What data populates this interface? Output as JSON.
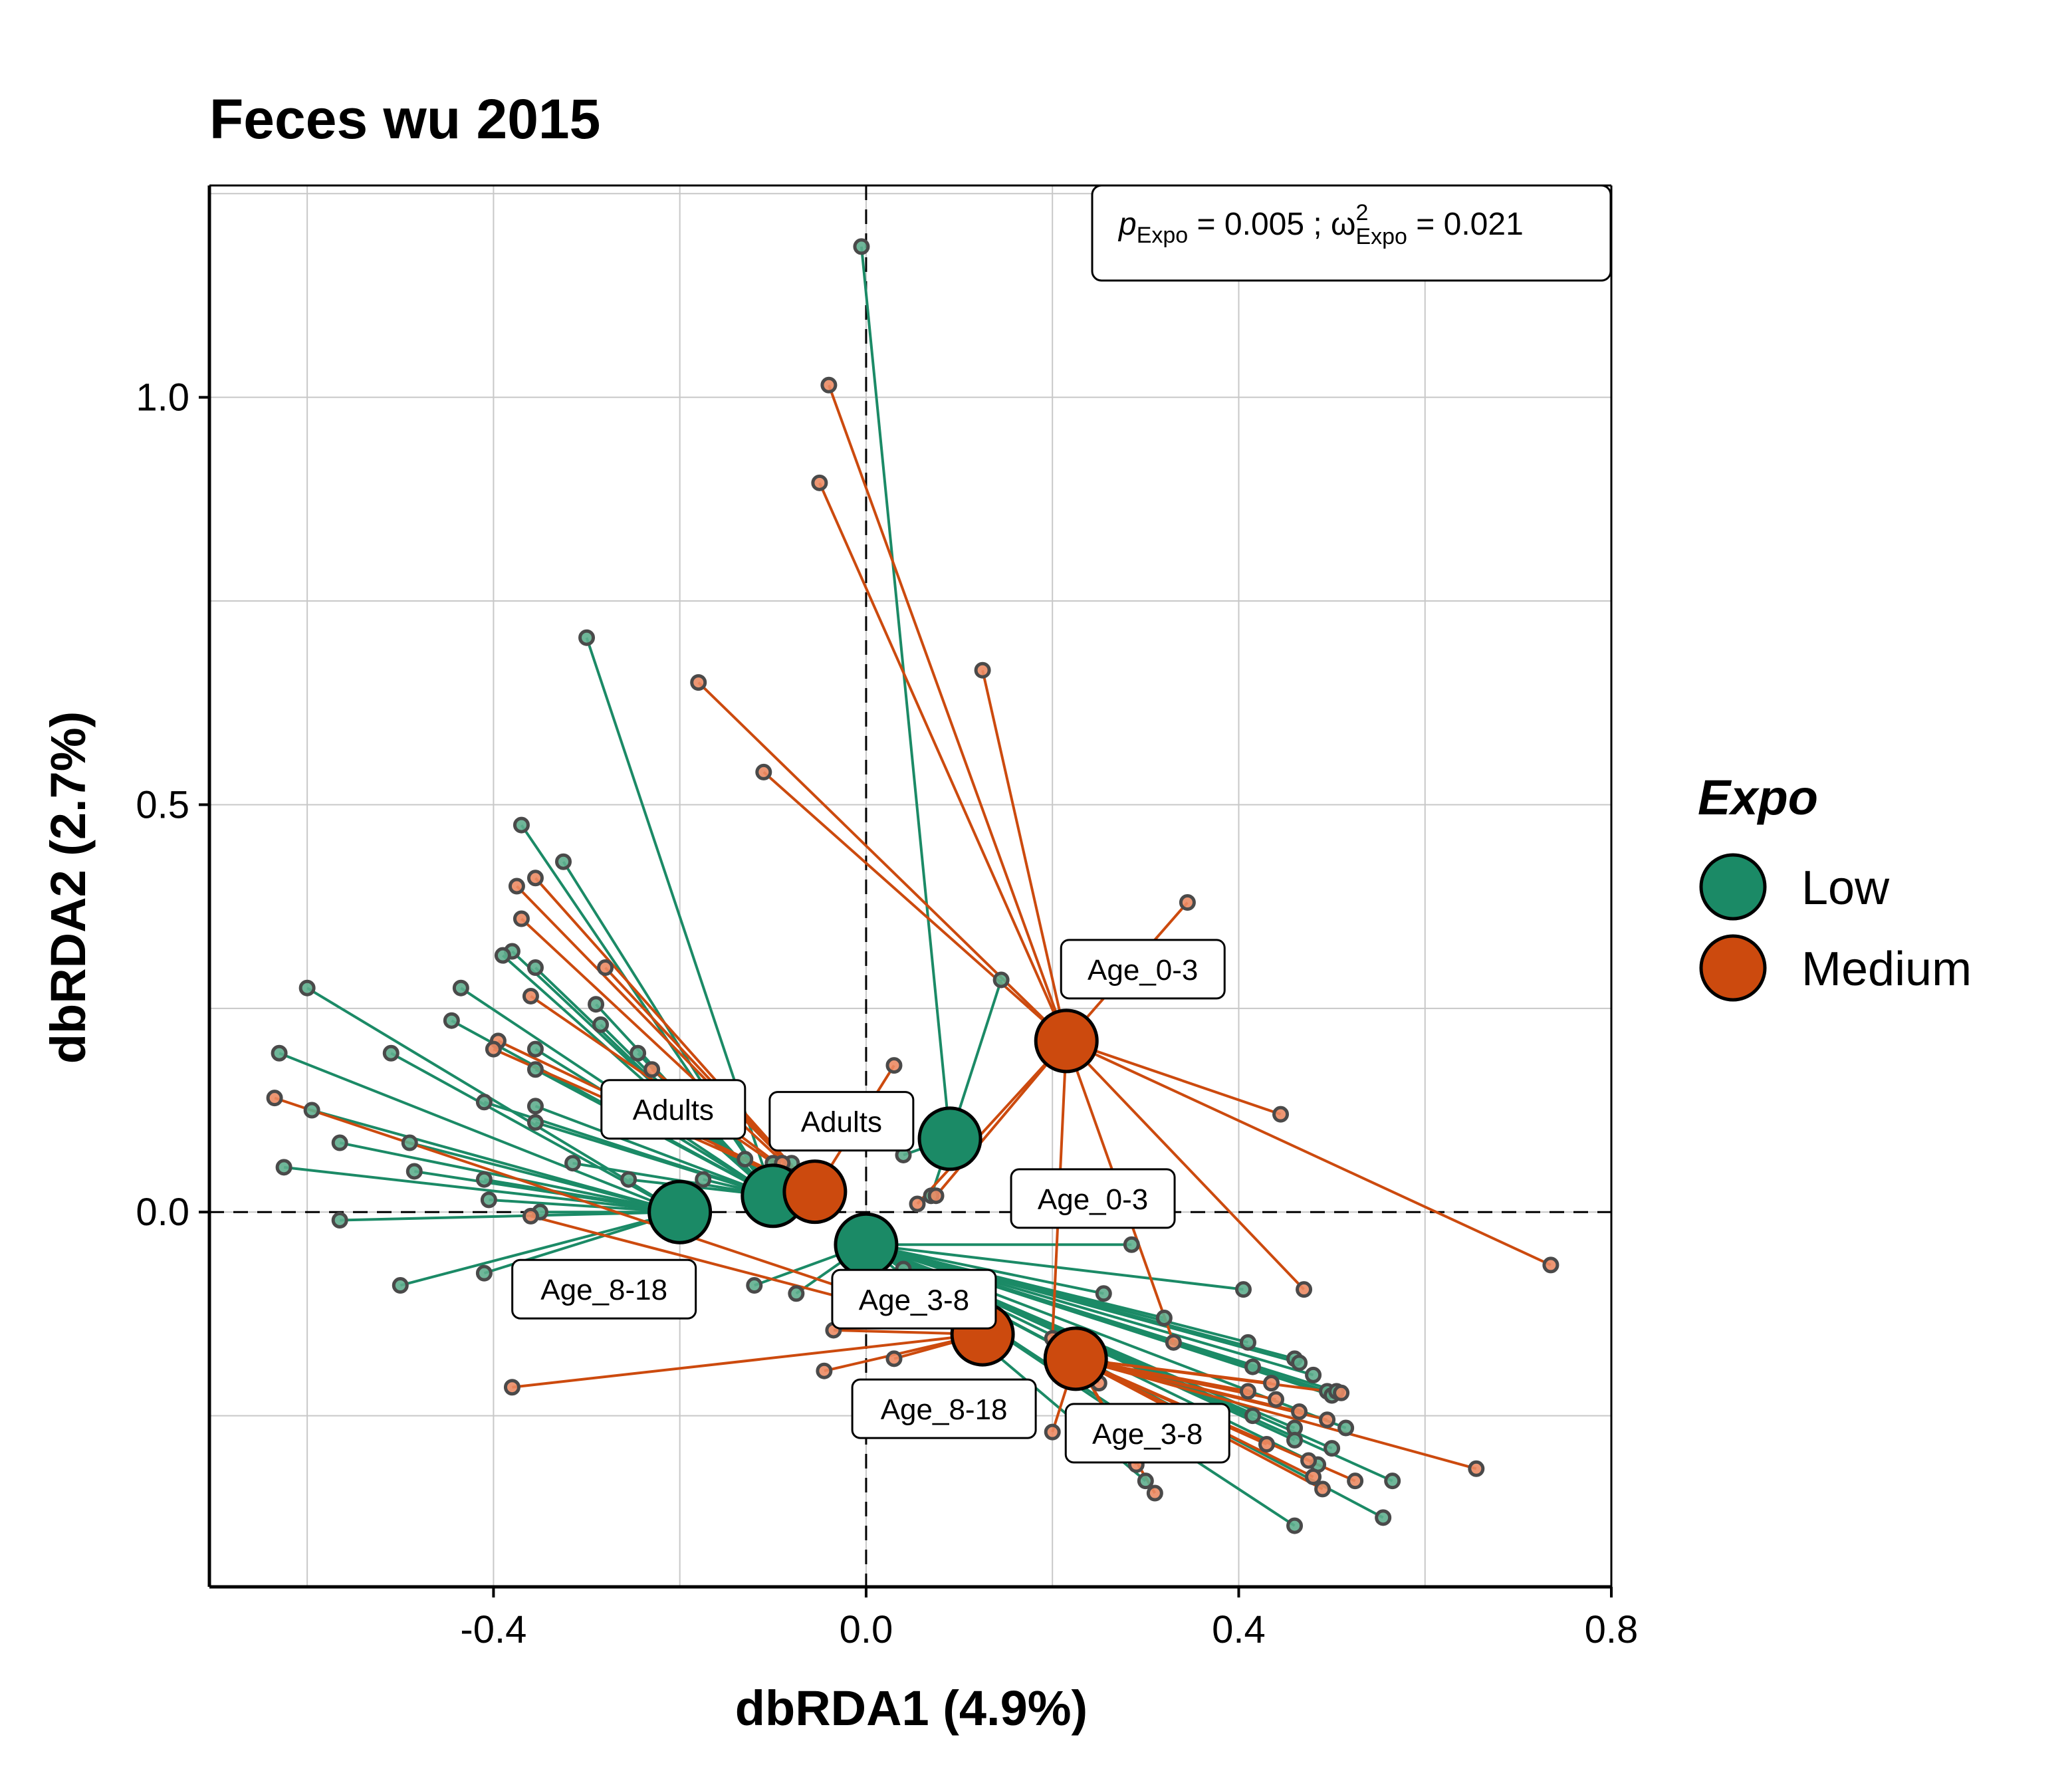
{
  "chart_data": {
    "type": "scatter",
    "title": "Feces wu 2015",
    "xlabel": "dbRDA1 (4.9%)",
    "ylabel": "dbRDA2 (2.7%)",
    "xlim": [
      -0.705,
      0.8
    ],
    "ylim": [
      -0.46,
      1.26
    ],
    "xticks": [
      "-0.4",
      "0.0",
      "0.4",
      "0.8"
    ],
    "yticks": [
      "0.0",
      "0.5",
      "1.0"
    ],
    "xtick_values": [
      -0.4,
      0.0,
      0.4,
      0.8
    ],
    "ytick_values": [
      0.0,
      0.5,
      1.0
    ],
    "grid": true,
    "reference_lines": {
      "x": 0,
      "y": 0,
      "style": "dashed"
    },
    "annotation": {
      "p_symbol": "p",
      "p_sub": "Expo",
      "p_value": " = 0.005 ; ",
      "omega": "ω",
      "omega_sup": "2",
      "omega_sub": "Expo",
      "omega_value": " = 0.021"
    },
    "legend": {
      "title": "Expo",
      "position": "right",
      "entries": [
        {
          "label": "Low",
          "color": "#1b8a66"
        },
        {
          "label": "Medium",
          "color": "#cc4a0e"
        }
      ]
    },
    "colors": {
      "Low": "#1b8a66",
      "Medium": "#cc4a0e",
      "Low_point": "#5fae8e",
      "Medium_point": "#eb8b64"
    },
    "centroids": [
      {
        "group": "Low",
        "label": "Adults",
        "x": -0.1,
        "y": 0.02
      },
      {
        "group": "Low",
        "label": "Age_0-3",
        "x": 0.09,
        "y": 0.09
      },
      {
        "group": "Low",
        "label": "Age_3-8",
        "x": 0.0,
        "y": -0.04
      },
      {
        "group": "Low",
        "label": "Age_8-18",
        "x": -0.2,
        "y": 0.0
      },
      {
        "group": "Medium",
        "label": "Adults",
        "x": -0.055,
        "y": 0.025
      },
      {
        "group": "Medium",
        "label": "Age_0-3",
        "x": 0.215,
        "y": 0.21
      },
      {
        "group": "Medium",
        "label": "Age_3-8",
        "x": 0.225,
        "y": -0.18
      },
      {
        "group": "Medium",
        "label": "Age_8-18",
        "x": 0.125,
        "y": -0.15
      }
    ],
    "series": [
      {
        "name": "Low",
        "group_label": "Age_0-3",
        "points": [
          {
            "x": -0.005,
            "y": 1.185
          },
          {
            "x": 0.145,
            "y": 0.285
          },
          {
            "x": 0.04,
            "y": 0.07
          },
          {
            "x": 0.07,
            "y": 0.02
          }
        ]
      },
      {
        "name": "Low",
        "group_label": "Adults",
        "points": [
          {
            "x": -0.3,
            "y": 0.705
          },
          {
            "x": -0.37,
            "y": 0.475
          },
          {
            "x": -0.325,
            "y": 0.43
          },
          {
            "x": -0.38,
            "y": 0.32
          },
          {
            "x": -0.39,
            "y": 0.315
          },
          {
            "x": -0.355,
            "y": 0.3
          },
          {
            "x": -0.435,
            "y": 0.275
          },
          {
            "x": -0.445,
            "y": 0.235
          },
          {
            "x": -0.29,
            "y": 0.255
          },
          {
            "x": -0.285,
            "y": 0.23
          },
          {
            "x": -0.245,
            "y": 0.195
          },
          {
            "x": -0.355,
            "y": 0.2
          },
          {
            "x": -0.355,
            "y": 0.175
          },
          {
            "x": -0.41,
            "y": 0.135
          },
          {
            "x": -0.355,
            "y": 0.13
          },
          {
            "x": -0.355,
            "y": 0.11
          },
          {
            "x": -0.315,
            "y": 0.06
          },
          {
            "x": -0.255,
            "y": 0.04
          },
          {
            "x": -0.175,
            "y": 0.04
          },
          {
            "x": -0.13,
            "y": 0.065
          },
          {
            "x": -0.1,
            "y": 0.06
          },
          {
            "x": -0.08,
            "y": 0.06
          },
          {
            "x": -0.05,
            "y": 0.035
          }
        ]
      },
      {
        "name": "Low",
        "group_label": "Age_8-18",
        "points": [
          {
            "x": -0.6,
            "y": 0.275
          },
          {
            "x": -0.63,
            "y": 0.195
          },
          {
            "x": -0.51,
            "y": 0.195
          },
          {
            "x": -0.595,
            "y": 0.125
          },
          {
            "x": -0.565,
            "y": 0.085
          },
          {
            "x": -0.49,
            "y": 0.085
          },
          {
            "x": -0.625,
            "y": 0.055
          },
          {
            "x": -0.485,
            "y": 0.05
          },
          {
            "x": -0.41,
            "y": 0.04
          },
          {
            "x": -0.405,
            "y": 0.015
          },
          {
            "x": -0.35,
            "y": 0.0
          },
          {
            "x": -0.565,
            "y": -0.01
          },
          {
            "x": -0.41,
            "y": -0.075
          },
          {
            "x": -0.5,
            "y": -0.09
          }
        ]
      },
      {
        "name": "Low",
        "group_label": "Age_3-8",
        "points": [
          {
            "x": -0.12,
            "y": -0.09
          },
          {
            "x": -0.075,
            "y": -0.1
          },
          {
            "x": 0.04,
            "y": -0.07
          },
          {
            "x": 0.07,
            "y": -0.09
          },
          {
            "x": 0.255,
            "y": -0.1
          },
          {
            "x": 0.405,
            "y": -0.095
          },
          {
            "x": 0.32,
            "y": -0.13
          },
          {
            "x": 0.285,
            "y": -0.04
          },
          {
            "x": 0.41,
            "y": -0.16
          },
          {
            "x": 0.415,
            "y": -0.19
          },
          {
            "x": 0.46,
            "y": -0.18
          },
          {
            "x": 0.465,
            "y": -0.185
          },
          {
            "x": 0.48,
            "y": -0.2
          },
          {
            "x": 0.495,
            "y": -0.22
          },
          {
            "x": 0.5,
            "y": -0.225
          },
          {
            "x": 0.505,
            "y": -0.22
          },
          {
            "x": 0.515,
            "y": -0.265
          },
          {
            "x": 0.46,
            "y": -0.265
          },
          {
            "x": 0.46,
            "y": -0.28
          },
          {
            "x": 0.5,
            "y": -0.29
          },
          {
            "x": 0.485,
            "y": -0.31
          },
          {
            "x": 0.565,
            "y": -0.33
          },
          {
            "x": 0.555,
            "y": -0.375
          },
          {
            "x": 0.46,
            "y": -0.385
          },
          {
            "x": 0.3,
            "y": -0.33
          },
          {
            "x": 0.3,
            "y": -0.27
          },
          {
            "x": 0.345,
            "y": -0.25
          },
          {
            "x": 0.415,
            "y": -0.25
          }
        ]
      },
      {
        "name": "Medium",
        "group_label": "Age_0-3",
        "points": [
          {
            "x": -0.04,
            "y": 1.015
          },
          {
            "x": -0.05,
            "y": 0.895
          },
          {
            "x": 0.125,
            "y": 0.665
          },
          {
            "x": -0.18,
            "y": 0.65
          },
          {
            "x": -0.11,
            "y": 0.54
          },
          {
            "x": 0.345,
            "y": 0.38
          },
          {
            "x": 0.445,
            "y": 0.12
          },
          {
            "x": 0.735,
            "y": -0.065
          },
          {
            "x": 0.47,
            "y": -0.095
          },
          {
            "x": 0.33,
            "y": -0.16
          },
          {
            "x": 0.075,
            "y": 0.02
          },
          {
            "x": 0.055,
            "y": 0.01
          },
          {
            "x": 0.2,
            "y": -0.155
          }
        ]
      },
      {
        "name": "Medium",
        "group_label": "Adults",
        "points": [
          {
            "x": -0.375,
            "y": 0.4
          },
          {
            "x": -0.355,
            "y": 0.41
          },
          {
            "x": -0.37,
            "y": 0.36
          },
          {
            "x": -0.28,
            "y": 0.3
          },
          {
            "x": -0.36,
            "y": 0.265
          },
          {
            "x": -0.395,
            "y": 0.21
          },
          {
            "x": -0.4,
            "y": 0.2
          },
          {
            "x": -0.23,
            "y": 0.175
          },
          {
            "x": 0.03,
            "y": 0.18
          },
          {
            "x": -0.15,
            "y": 0.14
          },
          {
            "x": -0.09,
            "y": 0.06
          }
        ]
      },
      {
        "name": "Medium",
        "group_label": "Age_8-18",
        "points": [
          {
            "x": -0.635,
            "y": 0.14
          },
          {
            "x": -0.36,
            "y": -0.005
          },
          {
            "x": -0.38,
            "y": -0.215
          },
          {
            "x": -0.045,
            "y": -0.195
          },
          {
            "x": -0.035,
            "y": -0.145
          },
          {
            "x": 0.0,
            "y": -0.06
          },
          {
            "x": 0.03,
            "y": -0.18
          }
        ]
      },
      {
        "name": "Medium",
        "group_label": "Age_3-8",
        "points": [
          {
            "x": 0.435,
            "y": -0.21
          },
          {
            "x": 0.44,
            "y": -0.23
          },
          {
            "x": 0.465,
            "y": -0.245
          },
          {
            "x": 0.495,
            "y": -0.255
          },
          {
            "x": 0.51,
            "y": -0.222
          },
          {
            "x": 0.41,
            "y": -0.22
          },
          {
            "x": 0.43,
            "y": -0.285
          },
          {
            "x": 0.475,
            "y": -0.305
          },
          {
            "x": 0.48,
            "y": -0.325
          },
          {
            "x": 0.49,
            "y": -0.34
          },
          {
            "x": 0.525,
            "y": -0.33
          },
          {
            "x": 0.655,
            "y": -0.315
          },
          {
            "x": 0.31,
            "y": -0.345
          },
          {
            "x": 0.29,
            "y": -0.31
          },
          {
            "x": 0.2,
            "y": -0.27
          },
          {
            "x": 0.25,
            "y": -0.21
          }
        ]
      }
    ]
  }
}
